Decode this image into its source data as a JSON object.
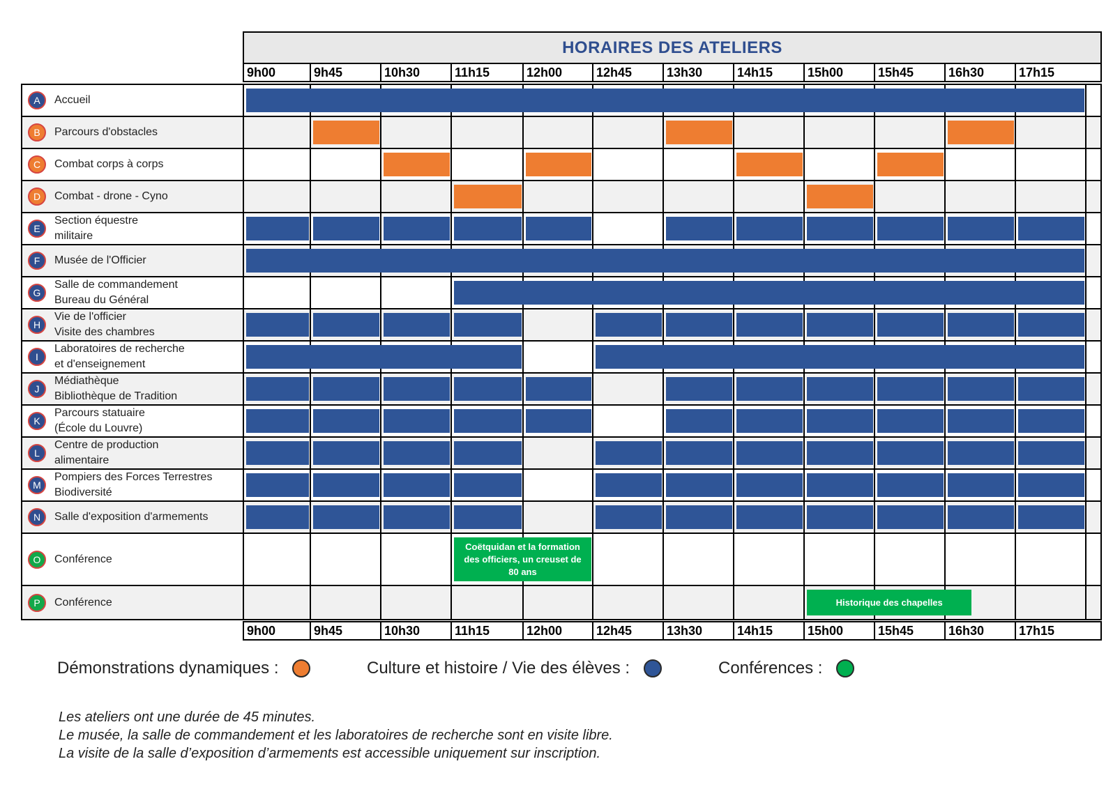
{
  "title": "HORAIRES DES ATELIERS",
  "times": [
    "9h00",
    "9h45",
    "10h30",
    "11h15",
    "12h00",
    "12h45",
    "13h30",
    "14h15",
    "15h00",
    "15h45",
    "16h30",
    "17h15"
  ],
  "colors": {
    "blue": "#2f5597",
    "orange": "#ee7d31",
    "green": "#00b050"
  },
  "rows": [
    {
      "letter": "A",
      "label": [
        "Accueil"
      ],
      "color": "blue",
      "bars": [
        {
          "start": 0,
          "end": 12
        }
      ]
    },
    {
      "letter": "B",
      "label": [
        "Parcours d'obstacles"
      ],
      "color": "orange",
      "bars": [
        {
          "start": 1,
          "end": 2
        },
        {
          "start": 6,
          "end": 7
        },
        {
          "start": 10,
          "end": 11
        }
      ]
    },
    {
      "letter": "C",
      "label": [
        "Combat corps à corps"
      ],
      "color": "orange",
      "bars": [
        {
          "start": 2,
          "end": 3
        },
        {
          "start": 4,
          "end": 5
        },
        {
          "start": 7,
          "end": 8
        },
        {
          "start": 9,
          "end": 10
        }
      ]
    },
    {
      "letter": "D",
      "label": [
        "Combat - drone - Cyno"
      ],
      "color": "orange",
      "bars": [
        {
          "start": 3,
          "end": 4
        },
        {
          "start": 8,
          "end": 9
        }
      ]
    },
    {
      "letter": "E",
      "label": [
        "Section équestre",
        "militaire"
      ],
      "color": "blue",
      "slots": [
        0,
        1,
        2,
        3,
        4,
        6,
        7,
        8,
        9,
        10,
        11
      ]
    },
    {
      "letter": "F",
      "label": [
        "Musée de l'Officier"
      ],
      "color": "blue",
      "bars": [
        {
          "start": 0,
          "end": 12
        }
      ]
    },
    {
      "letter": "G",
      "label": [
        "Salle de commandement",
        "Bureau du Général"
      ],
      "color": "blue",
      "bars": [
        {
          "start": 3,
          "end": 12
        }
      ]
    },
    {
      "letter": "H",
      "label": [
        "Vie de l'officier",
        "Visite des chambres"
      ],
      "color": "blue",
      "slots": [
        0,
        1,
        2,
        3,
        5,
        6,
        7,
        8,
        9,
        10,
        11
      ]
    },
    {
      "letter": "I",
      "label": [
        "Laboratoires de recherche",
        "et d'enseignement"
      ],
      "color": "blue",
      "bars": [
        {
          "start": 0,
          "end": 4
        },
        {
          "start": 5,
          "end": 12
        }
      ]
    },
    {
      "letter": "J",
      "label": [
        "Médiathèque",
        "Bibliothèque de Tradition"
      ],
      "color": "blue",
      "slots": [
        0,
        1,
        2,
        3,
        4,
        6,
        7,
        8,
        9,
        10,
        11
      ]
    },
    {
      "letter": "K",
      "label": [
        "Parcours statuaire",
        "(École du Louvre)"
      ],
      "color": "blue",
      "slots": [
        0,
        1,
        2,
        3,
        4,
        6,
        7,
        8,
        9,
        10,
        11
      ]
    },
    {
      "letter": "L",
      "label": [
        "Centre de production",
        "alimentaire"
      ],
      "color": "blue",
      "slots": [
        0,
        1,
        2,
        3,
        5,
        6,
        7,
        8,
        9,
        10,
        11
      ]
    },
    {
      "letter": "M",
      "label": [
        "Pompiers des Forces Terrestres",
        "Biodiversité"
      ],
      "color": "blue",
      "slots": [
        0,
        1,
        2,
        3,
        5,
        6,
        7,
        8,
        9,
        10,
        11
      ]
    },
    {
      "letter": "N",
      "label": [
        "Salle d'exposition d'armements"
      ],
      "color": "blue",
      "slots": [
        0,
        1,
        2,
        3,
        5,
        6,
        7,
        8,
        9,
        10,
        11
      ]
    },
    {
      "letter": "O",
      "label": [
        "Conférence"
      ],
      "color": "green",
      "bars": [
        {
          "start": 3,
          "end": 5,
          "text": "Coëtquidan  et la formation des officiers, un creuset de 80 ans"
        }
      ]
    },
    {
      "letter": "P",
      "label": [
        "Conférence"
      ],
      "color": "green",
      "bars": [
        {
          "start": 8,
          "end": 10.4,
          "text": "Historique des chapelles"
        }
      ]
    }
  ],
  "legend": [
    {
      "label": "Démonstrations dynamiques :",
      "color": "#ee7d31"
    },
    {
      "label": "Culture et histoire / Vie des élèves :",
      "color": "#2f5597"
    },
    {
      "label": "Conférences :",
      "color": "#00b050"
    }
  ],
  "notes": [
    "Les ateliers ont une durée de 45 minutes.",
    "Le musée, la salle de commandement et les laboratoires de recherche sont en visite libre.",
    "La visite de la salle d’exposition d’armements est accessible uniquement sur inscription."
  ]
}
